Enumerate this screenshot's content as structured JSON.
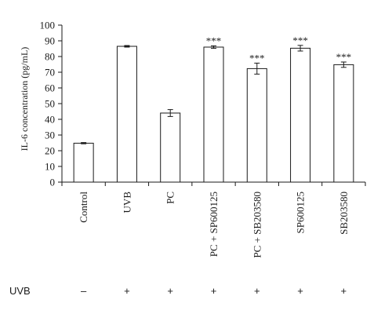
{
  "chart_data": {
    "type": "bar",
    "ylabel": "IL-6 concentration (pg/mL)",
    "ylim": [
      0,
      100
    ],
    "yticks": [
      0,
      10,
      20,
      30,
      40,
      50,
      60,
      70,
      80,
      90,
      100
    ],
    "grid": false,
    "categories": [
      "Control",
      "UVB",
      "PC",
      "PC + SP600125",
      "PC + SB203580",
      "SP600125",
      "SB203580"
    ],
    "values": [
      24.8,
      86.5,
      44.0,
      86.0,
      72.3,
      85.3,
      74.8
    ],
    "errors": [
      0.4,
      0.5,
      2.2,
      0.8,
      3.5,
      1.8,
      1.7
    ],
    "significance": [
      "",
      "",
      "",
      "***",
      "***",
      "***",
      "***"
    ],
    "bar_color": "#ffffff",
    "edge_color": "#1a1a1a"
  },
  "treatment_row": {
    "label": "UVB",
    "values": [
      "–",
      "+",
      "+",
      "+",
      "+",
      "+",
      "+"
    ]
  }
}
